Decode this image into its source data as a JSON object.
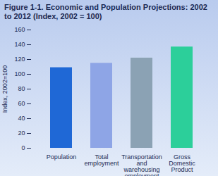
{
  "chart_data": {
    "type": "bar",
    "title": "Figure 1-1.  Economic and Population Projections: 2002 to 2012 (Index, 2002 = 100)",
    "y_label": "Index, 2002=100",
    "categories": [
      "Population",
      "Total employment",
      "Transportation and warehousing employment",
      "Gross Domestic Product"
    ],
    "values": [
      109,
      115,
      122,
      137
    ],
    "colors": [
      "#1f68d6",
      "#8ea5e6",
      "#8ba2b4",
      "#2ccf9a"
    ],
    "ylim": [
      0,
      160
    ],
    "yticks": [
      0,
      20,
      40,
      60,
      80,
      100,
      120,
      140,
      160
    ],
    "grid": false
  }
}
